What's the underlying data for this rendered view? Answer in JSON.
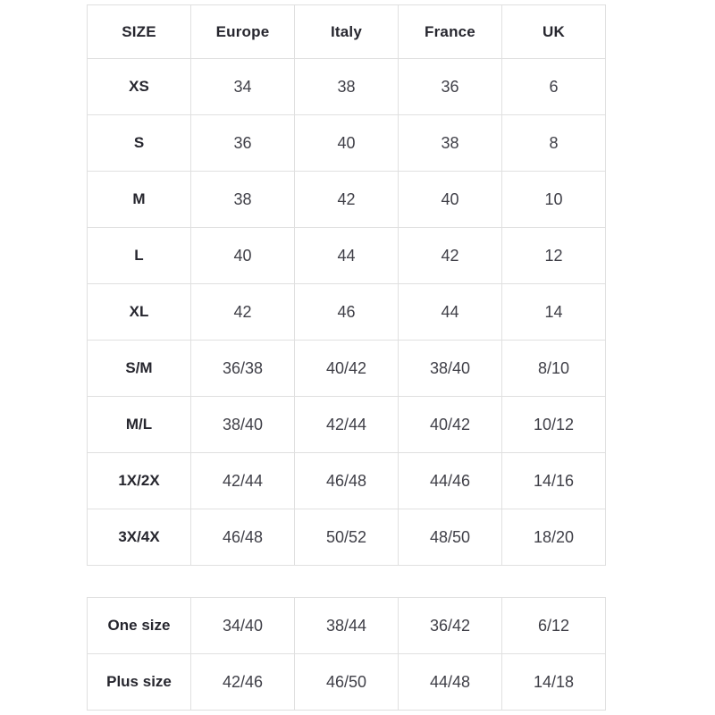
{
  "colors": {
    "background": "#ffffff",
    "border": "#e0e0e0",
    "header_text": "#26262e",
    "cell_text": "#3f3f47"
  },
  "chart_data": [
    {
      "type": "table",
      "title": "",
      "columns": [
        "SIZE",
        "Europe",
        "Italy",
        "France",
        "UK"
      ],
      "rows": [
        [
          "XS",
          "34",
          "38",
          "36",
          "6"
        ],
        [
          "S",
          "36",
          "40",
          "38",
          "8"
        ],
        [
          "M",
          "38",
          "42",
          "40",
          "10"
        ],
        [
          "L",
          "40",
          "44",
          "42",
          "12"
        ],
        [
          "XL",
          "42",
          "46",
          "44",
          "14"
        ],
        [
          "S/M",
          "36/38",
          "40/42",
          "38/40",
          "8/10"
        ],
        [
          "M/L",
          "38/40",
          "42/44",
          "40/42",
          "10/12"
        ],
        [
          "1X/2X",
          "42/44",
          "46/48",
          "44/46",
          "14/16"
        ],
        [
          "3X/4X",
          "46/48",
          "50/52",
          "48/50",
          "18/20"
        ]
      ]
    },
    {
      "type": "table",
      "title": "",
      "columns": [],
      "rows": [
        [
          "One size",
          "34/40",
          "38/44",
          "36/42",
          "6/12"
        ],
        [
          "Plus size",
          "42/46",
          "46/50",
          "44/48",
          "14/18"
        ]
      ]
    }
  ]
}
